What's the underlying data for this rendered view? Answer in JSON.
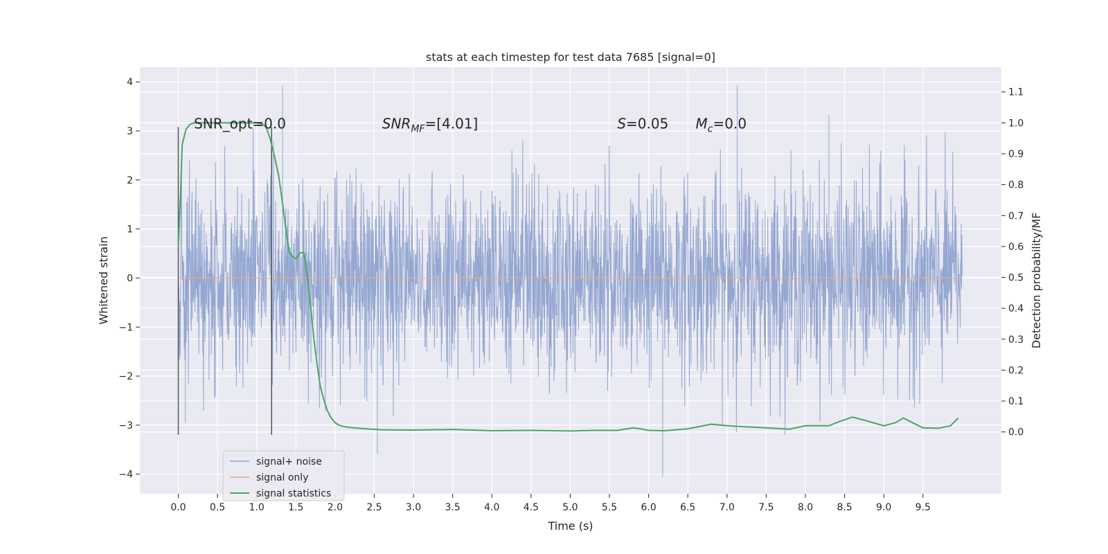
{
  "chart_data": {
    "type": "line",
    "title": "stats at each timestep for test data 7685 [signal=0]",
    "xlabel": "Time (s)",
    "ylabel_left": "Whitened strain",
    "ylabel_right": "Detection probability/MF",
    "xlim": [
      -0.49,
      10.5
    ],
    "ylim_left": [
      -4.4,
      4.3
    ],
    "ylim_right": [
      -0.2,
      1.18
    ],
    "x_ticks": [
      "0.0",
      "0.5",
      "1.0",
      "1.5",
      "2.0",
      "2.5",
      "3.0",
      "3.5",
      "4.0",
      "4.5",
      "5.0",
      "5.5",
      "6.0",
      "6.5",
      "7.0",
      "7.5",
      "8.0",
      "8.5",
      "9.0",
      "9.5"
    ],
    "y_left_ticks": [
      "4",
      "3",
      "2",
      "1",
      "0",
      "−1",
      "−2",
      "−3",
      "−4"
    ],
    "y_right_ticks": [
      "1.1",
      "1.0",
      "0.9",
      "0.8",
      "0.7",
      "0.6",
      "0.5",
      "0.4",
      "0.3",
      "0.2",
      "0.1",
      "0.0"
    ],
    "grid": true,
    "legend_position": "lower-left",
    "annotations": [
      {
        "text": "SNR_opt=0.0",
        "x": 0.2,
        "y": 3.05
      },
      {
        "text": "SNR_MF=[4.01]",
        "x": 2.6,
        "y": 3.05
      },
      {
        "text": "S=0.05",
        "x": 5.6,
        "y": 3.05
      },
      {
        "text": "M_c=0.0",
        "x": 6.6,
        "y": 3.05
      }
    ],
    "vertical_lines": [
      {
        "x": 0.0,
        "y_range": [
          -3.2,
          3.08
        ]
      },
      {
        "x": 1.19,
        "y_range": [
          -3.2,
          3.08
        ]
      }
    ],
    "series": [
      {
        "name": "signal+ noise",
        "axis": "left",
        "color": "#8fa3cf",
        "kind": "noise",
        "x_range": [
          0.0,
          10.0
        ],
        "typical_amplitude": 1.0,
        "extremes": [
          {
            "x": 0.09,
            "y": -2.95
          },
          {
            "x": 1.33,
            "y": 3.93
          },
          {
            "x": 2.54,
            "y": -3.58
          },
          {
            "x": 6.18,
            "y": -4.05
          },
          {
            "x": 7.13,
            "y": 3.93
          },
          {
            "x": 8.3,
            "y": 3.33
          }
        ]
      },
      {
        "name": "signal only",
        "axis": "left",
        "color": "#e8a882",
        "x": [
          0.0,
          10.0
        ],
        "values": [
          0.0,
          0.0
        ]
      },
      {
        "name": "signal statistics",
        "axis": "right",
        "color": "#4aa564",
        "x": [
          0.0,
          0.03,
          0.05,
          0.07,
          0.1,
          0.15,
          0.2,
          0.3,
          0.5,
          0.8,
          1.0,
          1.08,
          1.12,
          1.17,
          1.22,
          1.28,
          1.33,
          1.38,
          1.42,
          1.45,
          1.5,
          1.56,
          1.6,
          1.65,
          1.7,
          1.73,
          1.77,
          1.81,
          1.85,
          1.9,
          1.95,
          2.0,
          2.05,
          2.1,
          2.2,
          2.4,
          2.6,
          3.0,
          3.5,
          4.0,
          4.5,
          5.0,
          5.3,
          5.6,
          5.8,
          5.9,
          6.0,
          6.2,
          6.5,
          6.8,
          7.0,
          7.5,
          7.8,
          8.0,
          8.3,
          8.45,
          8.6,
          8.75,
          9.0,
          9.15,
          9.25,
          9.35,
          9.5,
          9.7,
          9.85,
          9.95
        ],
        "values": [
          0.6,
          0.78,
          0.93,
          0.95,
          0.98,
          0.995,
          1.0,
          1.0,
          1.0,
          1.0,
          1.0,
          0.995,
          0.985,
          0.95,
          0.9,
          0.83,
          0.74,
          0.64,
          0.58,
          0.57,
          0.56,
          0.58,
          0.58,
          0.5,
          0.38,
          0.3,
          0.22,
          0.15,
          0.11,
          0.07,
          0.045,
          0.03,
          0.022,
          0.018,
          0.014,
          0.01,
          0.007,
          0.006,
          0.008,
          0.004,
          0.005,
          0.003,
          0.005,
          0.005,
          0.013,
          0.01,
          0.005,
          0.004,
          0.01,
          0.025,
          0.02,
          0.013,
          0.009,
          0.02,
          0.02,
          0.035,
          0.048,
          0.038,
          0.02,
          0.03,
          0.045,
          0.032,
          0.013,
          0.012,
          0.02,
          0.045
        ]
      }
    ]
  }
}
